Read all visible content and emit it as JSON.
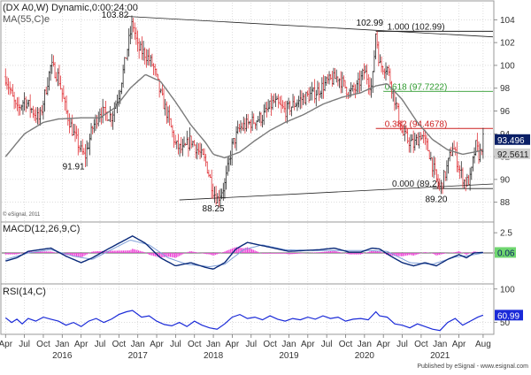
{
  "header": {
    "title": "(DX A0,W) Dynamic,0:00:24:00",
    "ma_label": "MA(55,C)e",
    "copyright": "© eSignal, 2011",
    "footer": "Published by eSignal - www.esignal.com"
  },
  "colors": {
    "up_bar": "#2a2a2a",
    "down_bar": "#e0353a",
    "ma_line": "#7a7a7a",
    "trendline": "#222222",
    "fib_red": "#cc1f1f",
    "fib_green": "#2e9b2e",
    "macd_line": "#0a2a7a",
    "signal_line": "#7fa0d8",
    "histogram": "#ee3fd6",
    "rsi_line": "#1a2ad8",
    "grid": "#c8c8c8",
    "axis_text": "#333333",
    "last_price_box": "#0a1f66",
    "ma_price_box": "#cfcfcf"
  },
  "chart_data": [
    {
      "type": "line",
      "name": "price",
      "ylim": [
        86.5,
        105.5
      ],
      "y_ticks": [
        88,
        90,
        92,
        94,
        96,
        98,
        100,
        102,
        104
      ],
      "xlim": [
        2015.25,
        2021.75
      ],
      "ohlc_anchors": [
        [
          2015.3,
          99.0
        ],
        [
          2015.45,
          96.0
        ],
        [
          2015.55,
          97.0
        ],
        [
          2015.75,
          95.2
        ],
        [
          2015.9,
          100.0
        ],
        [
          2016.0,
          99.0
        ],
        [
          2016.1,
          96.0
        ],
        [
          2016.2,
          94.0
        ],
        [
          2016.3,
          92.5
        ],
        [
          2016.35,
          91.91
        ],
        [
          2016.45,
          94.5
        ],
        [
          2016.55,
          96.0
        ],
        [
          2016.7,
          95.5
        ],
        [
          2016.8,
          97.5
        ],
        [
          2016.9,
          101.0
        ],
        [
          2016.98,
          103.82
        ],
        [
          2017.05,
          101.5
        ],
        [
          2017.15,
          101.0
        ],
        [
          2017.25,
          100.0
        ],
        [
          2017.35,
          97.5
        ],
        [
          2017.45,
          95.5
        ],
        [
          2017.55,
          93.0
        ],
        [
          2017.65,
          92.5
        ],
        [
          2017.75,
          93.5
        ],
        [
          2017.85,
          92.5
        ],
        [
          2017.95,
          91.5
        ],
        [
          2018.05,
          89.0
        ],
        [
          2018.1,
          88.25
        ],
        [
          2018.2,
          89.5
        ],
        [
          2018.3,
          93.0
        ],
        [
          2018.4,
          94.5
        ],
        [
          2018.55,
          95.0
        ],
        [
          2018.7,
          95.5
        ],
        [
          2018.85,
          96.8
        ],
        [
          2019.0,
          96.0
        ],
        [
          2019.2,
          97.0
        ],
        [
          2019.4,
          97.6
        ],
        [
          2019.55,
          98.5
        ],
        [
          2019.7,
          99.0
        ],
        [
          2019.85,
          97.6
        ],
        [
          2019.95,
          98.0
        ],
        [
          2020.05,
          99.5
        ],
        [
          2020.15,
          98.0
        ],
        [
          2020.2,
          102.99
        ],
        [
          2020.25,
          100.0
        ],
        [
          2020.35,
          99.8
        ],
        [
          2020.45,
          97.0
        ],
        [
          2020.55,
          94.0
        ],
        [
          2020.62,
          93.5
        ],
        [
          2020.7,
          93.0
        ],
        [
          2020.8,
          94.0
        ],
        [
          2020.9,
          92.5
        ],
        [
          2021.0,
          90.0
        ],
        [
          2021.05,
          89.2
        ],
        [
          2021.12,
          90.5
        ],
        [
          2021.22,
          93.0
        ],
        [
          2021.3,
          91.0
        ],
        [
          2021.38,
          89.7
        ],
        [
          2021.45,
          90.0
        ],
        [
          2021.52,
          93.0
        ],
        [
          2021.57,
          92.0
        ],
        [
          2021.62,
          93.496
        ]
      ],
      "ma55_anchors": [
        [
          2015.3,
          92.0
        ],
        [
          2015.55,
          94.0
        ],
        [
          2015.8,
          95.0
        ],
        [
          2016.0,
          95.3
        ],
        [
          2016.3,
          95.4
        ],
        [
          2016.55,
          95.4
        ],
        [
          2016.75,
          96.3
        ],
        [
          2016.95,
          98.0
        ],
        [
          2017.15,
          99.2
        ],
        [
          2017.35,
          98.6
        ],
        [
          2017.55,
          96.8
        ],
        [
          2017.75,
          94.8
        ],
        [
          2017.95,
          93.2
        ],
        [
          2018.05,
          92.2
        ],
        [
          2018.2,
          91.9
        ],
        [
          2018.4,
          92.4
        ],
        [
          2018.6,
          93.4
        ],
        [
          2018.8,
          94.3
        ],
        [
          2019.0,
          95.0
        ],
        [
          2019.25,
          95.7
        ],
        [
          2019.5,
          96.6
        ],
        [
          2019.75,
          97.2
        ],
        [
          2020.0,
          97.6
        ],
        [
          2020.2,
          98.2
        ],
        [
          2020.35,
          98.4
        ],
        [
          2020.55,
          97.0
        ],
        [
          2020.75,
          95.0
        ],
        [
          2020.95,
          93.5
        ],
        [
          2021.15,
          92.6
        ],
        [
          2021.35,
          92.2
        ],
        [
          2021.5,
          92.4
        ],
        [
          2021.62,
          92.5611
        ]
      ],
      "last_price": 93.496,
      "ma_value": 92.5611,
      "swing_labels": [
        {
          "text": "103.82",
          "x": 2016.75,
          "y": 104.2
        },
        {
          "text": "91.91",
          "x": 2016.2,
          "y": 90.9
        },
        {
          "text": "88.25",
          "x": 2018.05,
          "y": 87.2
        },
        {
          "text": "102.99",
          "x": 2020.12,
          "y": 103.5
        },
        {
          "text": "89.20",
          "x": 2021.0,
          "y": 88.0
        }
      ],
      "fib_levels": [
        {
          "label": "1.000 (102.99)",
          "value": 102.99,
          "color_key": "trendline",
          "from": 2020.2
        },
        {
          "label": "0.618 (97.7222)",
          "value": 97.7222,
          "color_key": "fib_green",
          "from": 2020.3
        },
        {
          "label": "0.382 (94.4678)",
          "value": 94.4678,
          "color_key": "fib_red",
          "from": 2020.2
        },
        {
          "label": "0.000 (89.2)",
          "value": 89.2,
          "color_key": "trendline",
          "from": 2020.95
        }
      ],
      "trendlines": [
        {
          "from": [
            2016.9,
            104.3
          ],
          "to": [
            2021.75,
            102.5
          ]
        },
        {
          "from": [
            2017.6,
            88.2
          ],
          "to": [
            2021.75,
            89.6
          ]
        }
      ]
    },
    {
      "type": "line",
      "name": "MACD(12,26,9,C)",
      "ylim": [
        -3.5,
        3.5
      ],
      "y_ticks": [
        2.5,
        0
      ],
      "last_value": 0.06,
      "macd_anchors": [
        [
          2015.3,
          -1.0
        ],
        [
          2015.45,
          -0.6
        ],
        [
          2015.6,
          0.2
        ],
        [
          2015.75,
          0.4
        ],
        [
          2015.9,
          0.6
        ],
        [
          2016.1,
          -0.4
        ],
        [
          2016.3,
          -1.2
        ],
        [
          2016.45,
          -0.6
        ],
        [
          2016.6,
          0.2
        ],
        [
          2016.8,
          1.2
        ],
        [
          2016.98,
          2.1
        ],
        [
          2017.15,
          1.2
        ],
        [
          2017.35,
          -0.6
        ],
        [
          2017.55,
          -1.6
        ],
        [
          2017.75,
          -1.2
        ],
        [
          2017.95,
          -1.8
        ],
        [
          2018.05,
          -2.0
        ],
        [
          2018.2,
          -1.2
        ],
        [
          2018.35,
          0.5
        ],
        [
          2018.5,
          1.3
        ],
        [
          2018.65,
          1.0
        ],
        [
          2018.85,
          0.6
        ],
        [
          2019.05,
          0.2
        ],
        [
          2019.25,
          0.3
        ],
        [
          2019.45,
          0.4
        ],
        [
          2019.65,
          0.6
        ],
        [
          2019.85,
          0.1
        ],
        [
          2020.0,
          0.1
        ],
        [
          2020.15,
          0.6
        ],
        [
          2020.25,
          0.5
        ],
        [
          2020.4,
          -0.4
        ],
        [
          2020.55,
          -1.2
        ],
        [
          2020.7,
          -1.6
        ],
        [
          2020.85,
          -1.2
        ],
        [
          2021.0,
          -1.6
        ],
        [
          2021.15,
          -0.8
        ],
        [
          2021.3,
          -0.2
        ],
        [
          2021.4,
          -0.6
        ],
        [
          2021.5,
          0.0
        ],
        [
          2021.62,
          0.06
        ]
      ],
      "signal_anchors": [
        [
          2015.3,
          -0.8
        ],
        [
          2015.6,
          0.0
        ],
        [
          2015.9,
          0.4
        ],
        [
          2016.2,
          -0.4
        ],
        [
          2016.45,
          -0.8
        ],
        [
          2016.7,
          0.4
        ],
        [
          2016.95,
          1.6
        ],
        [
          2017.2,
          1.0
        ],
        [
          2017.45,
          -0.6
        ],
        [
          2017.7,
          -1.4
        ],
        [
          2018.0,
          -1.7
        ],
        [
          2018.2,
          -1.4
        ],
        [
          2018.45,
          0.4
        ],
        [
          2018.7,
          1.0
        ],
        [
          2019.0,
          0.4
        ],
        [
          2019.4,
          0.3
        ],
        [
          2019.8,
          0.3
        ],
        [
          2020.1,
          0.3
        ],
        [
          2020.35,
          0.2
        ],
        [
          2020.65,
          -1.2
        ],
        [
          2020.95,
          -1.4
        ],
        [
          2021.25,
          -0.5
        ],
        [
          2021.45,
          -0.3
        ],
        [
          2021.62,
          0.0
        ]
      ]
    },
    {
      "type": "line",
      "name": "RSI(14,C)",
      "ylim": [
        35,
        105
      ],
      "y_ticks": [
        100,
        50
      ],
      "last_value": 60.99,
      "rsi_anchors": [
        [
          2015.3,
          57
        ],
        [
          2015.38,
          50
        ],
        [
          2015.45,
          55
        ],
        [
          2015.52,
          48
        ],
        [
          2015.6,
          56
        ],
        [
          2015.7,
          52
        ],
        [
          2015.8,
          58
        ],
        [
          2015.9,
          55
        ],
        [
          2016.0,
          52
        ],
        [
          2016.1,
          46
        ],
        [
          2016.2,
          50
        ],
        [
          2016.3,
          44
        ],
        [
          2016.4,
          52
        ],
        [
          2016.5,
          56
        ],
        [
          2016.6,
          50
        ],
        [
          2016.7,
          55
        ],
        [
          2016.8,
          62
        ],
        [
          2016.9,
          66
        ],
        [
          2016.98,
          68
        ],
        [
          2017.1,
          58
        ],
        [
          2017.2,
          60
        ],
        [
          2017.3,
          52
        ],
        [
          2017.4,
          47
        ],
        [
          2017.5,
          45
        ],
        [
          2017.6,
          50
        ],
        [
          2017.7,
          44
        ],
        [
          2017.8,
          52
        ],
        [
          2017.9,
          46
        ],
        [
          2018.0,
          42
        ],
        [
          2018.1,
          40
        ],
        [
          2018.2,
          48
        ],
        [
          2018.3,
          58
        ],
        [
          2018.4,
          62
        ],
        [
          2018.5,
          56
        ],
        [
          2018.6,
          58
        ],
        [
          2018.7,
          54
        ],
        [
          2018.8,
          60
        ],
        [
          2018.9,
          55
        ],
        [
          2019.0,
          52
        ],
        [
          2019.1,
          56
        ],
        [
          2019.2,
          54
        ],
        [
          2019.3,
          58
        ],
        [
          2019.4,
          55
        ],
        [
          2019.5,
          60
        ],
        [
          2019.6,
          56
        ],
        [
          2019.7,
          58
        ],
        [
          2019.8,
          52
        ],
        [
          2019.9,
          55
        ],
        [
          2020.0,
          56
        ],
        [
          2020.1,
          54
        ],
        [
          2020.2,
          66
        ],
        [
          2020.25,
          60
        ],
        [
          2020.35,
          58
        ],
        [
          2020.45,
          48
        ],
        [
          2020.55,
          46
        ],
        [
          2020.65,
          42
        ],
        [
          2020.75,
          48
        ],
        [
          2020.85,
          44
        ],
        [
          2020.95,
          40
        ],
        [
          2021.05,
          38
        ],
        [
          2021.15,
          50
        ],
        [
          2021.25,
          56
        ],
        [
          2021.35,
          46
        ],
        [
          2021.45,
          52
        ],
        [
          2021.55,
          58
        ],
        [
          2021.62,
          60.99
        ]
      ]
    }
  ],
  "x_axis": {
    "month_labels": [
      {
        "text": "Apr",
        "x": 2015.3
      },
      {
        "text": "Jul",
        "x": 2015.55
      },
      {
        "text": "Oct",
        "x": 2015.8
      },
      {
        "text": "Jan",
        "x": 2016.05
      },
      {
        "text": "Apr",
        "x": 2016.3
      },
      {
        "text": "Jul",
        "x": 2016.55
      },
      {
        "text": "Oct",
        "x": 2016.8
      },
      {
        "text": "Jan",
        "x": 2017.05
      },
      {
        "text": "Apr",
        "x": 2017.3
      },
      {
        "text": "Jul",
        "x": 2017.55
      },
      {
        "text": "Oct",
        "x": 2017.8
      },
      {
        "text": "Jan",
        "x": 2018.05
      },
      {
        "text": "Apr",
        "x": 2018.3
      },
      {
        "text": "Jul",
        "x": 2018.55
      },
      {
        "text": "Oct",
        "x": 2018.8
      },
      {
        "text": "Jan",
        "x": 2019.05
      },
      {
        "text": "Apr",
        "x": 2019.3
      },
      {
        "text": "Jul",
        "x": 2019.55
      },
      {
        "text": "Oct",
        "x": 2019.8
      },
      {
        "text": "Jan",
        "x": 2020.05
      },
      {
        "text": "Apr",
        "x": 2020.3
      },
      {
        "text": "Jul",
        "x": 2020.55
      },
      {
        "text": "Oct",
        "x": 2020.8
      },
      {
        "text": "Jan",
        "x": 2021.05
      },
      {
        "text": "Apr",
        "x": 2021.3
      },
      {
        "text": "Aug",
        "x": 2021.62
      }
    ],
    "year_labels": [
      {
        "text": "2016",
        "x": 2016.05
      },
      {
        "text": "2017",
        "x": 2017.05
      },
      {
        "text": "2018",
        "x": 2018.05
      },
      {
        "text": "2019",
        "x": 2019.05
      },
      {
        "text": "2020",
        "x": 2020.05
      },
      {
        "text": "2021",
        "x": 2021.05
      }
    ]
  }
}
